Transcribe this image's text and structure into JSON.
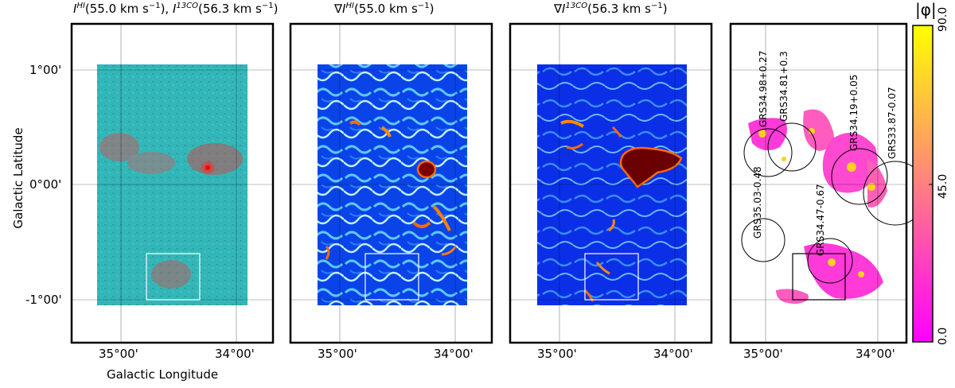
{
  "panels": [
    {
      "title": "I^HI(55.0 km s^-1), I^13CO(56.3 km s^-1)",
      "title_html": true
    },
    {
      "title": "∇I^HI(55.0 km s^-1)"
    },
    {
      "title": "∇I^13CO(56.3 km s^-1)"
    },
    {
      "title": ""
    }
  ],
  "axes": {
    "xlabel": "Galactic Longitude",
    "ylabel": "Galactic Latitude",
    "xticks": [
      "35°00'",
      "34°00'"
    ],
    "yticks": [
      "1°00'",
      "0°00'",
      "-1°00'"
    ]
  },
  "colorbar": {
    "label": "|φ|",
    "ticks": [
      "90.0",
      "45.0",
      "0.0"
    ],
    "colors": [
      "#ffff00",
      "#ff8080",
      "#ff00ff"
    ]
  },
  "sources": [
    "GRS34.98+0.27",
    "GRS34.81+0.3",
    "GRS34.19+0.05",
    "GRS33.87-0.07",
    "GRS35.03-0.48",
    "GRS34.47-0.67"
  ],
  "colors": {
    "rgb_background": "#2fb3b5",
    "gradient_background": "#0a40e0",
    "gradient_peak": "#6b0000",
    "frame": "#000000"
  }
}
